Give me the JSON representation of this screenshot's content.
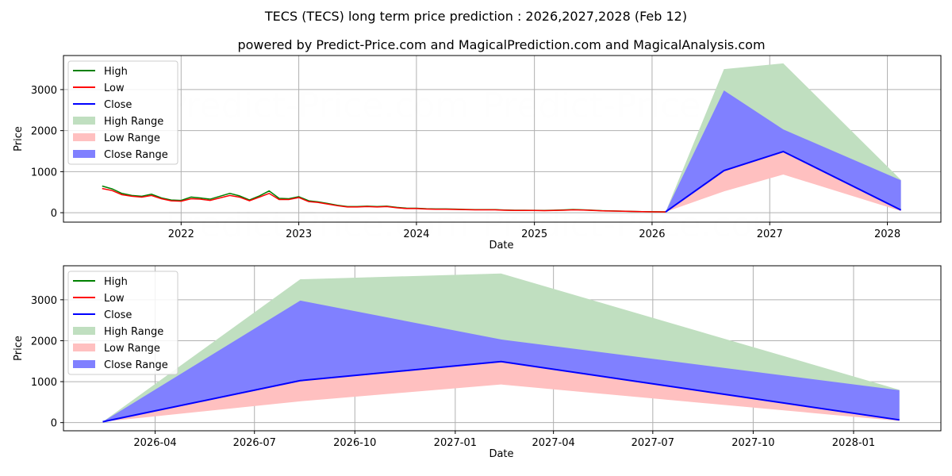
{
  "title": "TECS (TECS) long term price prediction : 2026,2027,2028 (Feb 12)",
  "subtitle": "powered by Predict-Price.com and MagicalPrediction.com and MagicalAnalysis.com",
  "watermark": "Predict-Price.com",
  "colors": {
    "high": "#008000",
    "low": "#ff0000",
    "close": "#0000ff",
    "high_range": "#c0dfc0",
    "low_range": "#ffc0c0",
    "close_range": "#8080ff"
  },
  "chart_data": [
    {
      "type": "line",
      "title": "overview",
      "xlabel": "Date",
      "ylabel": "Price",
      "xlim": [
        "2021-01-01",
        "2028-06-15"
      ],
      "ylim": [
        -230,
        3830
      ],
      "grid": true,
      "legend_placement": "top-left",
      "legend": [
        "High",
        "Low",
        "Close",
        "High Range",
        "Low Range",
        "Close Range"
      ],
      "xticks": [
        {
          "date": "2022-01-01",
          "label": "2022"
        },
        {
          "date": "2023-01-01",
          "label": "2023"
        },
        {
          "date": "2024-01-01",
          "label": "2024"
        },
        {
          "date": "2025-01-01",
          "label": "2025"
        },
        {
          "date": "2026-01-01",
          "label": "2026"
        },
        {
          "date": "2027-01-01",
          "label": "2027"
        },
        {
          "date": "2028-01-01",
          "label": "2028"
        }
      ],
      "yticks": [
        0,
        1000,
        2000,
        3000
      ],
      "show_history": true
    },
    {
      "type": "line",
      "title": "forecast detail",
      "xlabel": "Date",
      "ylabel": "Price",
      "xlim": [
        "2026-01-07",
        "2028-03-21"
      ],
      "ylim": [
        -200,
        3830
      ],
      "grid": true,
      "legend_placement": "top-left",
      "legend": [
        "High",
        "Low",
        "Close",
        "High Range",
        "Low Range",
        "Close Range"
      ],
      "xticks": [
        {
          "date": "2026-04-01",
          "label": "2026-04"
        },
        {
          "date": "2026-07-01",
          "label": "2026-07"
        },
        {
          "date": "2026-10-01",
          "label": "2026-10"
        },
        {
          "date": "2027-01-01",
          "label": "2027-01"
        },
        {
          "date": "2027-04-01",
          "label": "2027-04"
        },
        {
          "date": "2027-07-01",
          "label": "2027-07"
        },
        {
          "date": "2027-10-01",
          "label": "2027-10"
        },
        {
          "date": "2028-01-01",
          "label": "2028-01"
        }
      ],
      "yticks": [
        0,
        1000,
        2000,
        3000
      ],
      "show_history": false
    }
  ],
  "history": {
    "dates": [
      "2021-05-01",
      "2021-06-01",
      "2021-07-01",
      "2021-08-01",
      "2021-09-01",
      "2021-10-01",
      "2021-11-01",
      "2021-12-01",
      "2022-01-01",
      "2022-02-01",
      "2022-03-01",
      "2022-04-01",
      "2022-05-01",
      "2022-06-01",
      "2022-07-01",
      "2022-08-01",
      "2022-09-01",
      "2022-10-01",
      "2022-11-01",
      "2022-12-01",
      "2023-01-01",
      "2023-02-01",
      "2023-03-01",
      "2023-04-01",
      "2023-05-01",
      "2023-06-01",
      "2023-07-01",
      "2023-08-01",
      "2023-09-01",
      "2023-10-01",
      "2023-11-01",
      "2023-12-01",
      "2024-01-01",
      "2024-02-01",
      "2024-03-01",
      "2024-04-01",
      "2024-05-01",
      "2024-06-01",
      "2024-07-01",
      "2024-08-01",
      "2024-09-01",
      "2024-10-01",
      "2024-11-01",
      "2024-12-01",
      "2025-01-01",
      "2025-02-01",
      "2025-03-01",
      "2025-04-01",
      "2025-05-01",
      "2025-06-01",
      "2025-07-01",
      "2025-08-01",
      "2025-09-01",
      "2025-10-01",
      "2025-11-01",
      "2025-12-01",
      "2026-01-01",
      "2026-02-12"
    ],
    "high": [
      650,
      580,
      470,
      420,
      400,
      450,
      360,
      310,
      300,
      380,
      360,
      330,
      400,
      470,
      410,
      310,
      410,
      530,
      350,
      340,
      390,
      290,
      265,
      225,
      180,
      150,
      150,
      160,
      150,
      160,
      130,
      110,
      108,
      97,
      92,
      92,
      86,
      80,
      75,
      75,
      75,
      65,
      60,
      60,
      58,
      54,
      60,
      68,
      78,
      70,
      60,
      48,
      43,
      38,
      32,
      27,
      24,
      22
    ],
    "low": [
      590,
      540,
      440,
      400,
      380,
      420,
      340,
      290,
      280,
      340,
      330,
      300,
      360,
      420,
      380,
      290,
      380,
      470,
      320,
      320,
      370,
      270,
      250,
      210,
      170,
      140,
      140,
      150,
      140,
      150,
      120,
      100,
      100,
      90,
      85,
      85,
      80,
      75,
      70,
      70,
      70,
      60,
      55,
      55,
      55,
      50,
      55,
      60,
      70,
      65,
      55,
      45,
      40,
      35,
      30,
      25,
      22,
      20
    ]
  },
  "forecast": {
    "dates": [
      "2026-02-12",
      "2026-08-12",
      "2027-02-12",
      "2028-02-12"
    ],
    "close": [
      20,
      1025,
      1490,
      65
    ],
    "close_range_high": [
      20,
      2980,
      2030,
      790
    ],
    "high_range_high": [
      20,
      3500,
      3640,
      800
    ],
    "low_range_low": [
      20,
      520,
      930,
      40
    ]
  }
}
